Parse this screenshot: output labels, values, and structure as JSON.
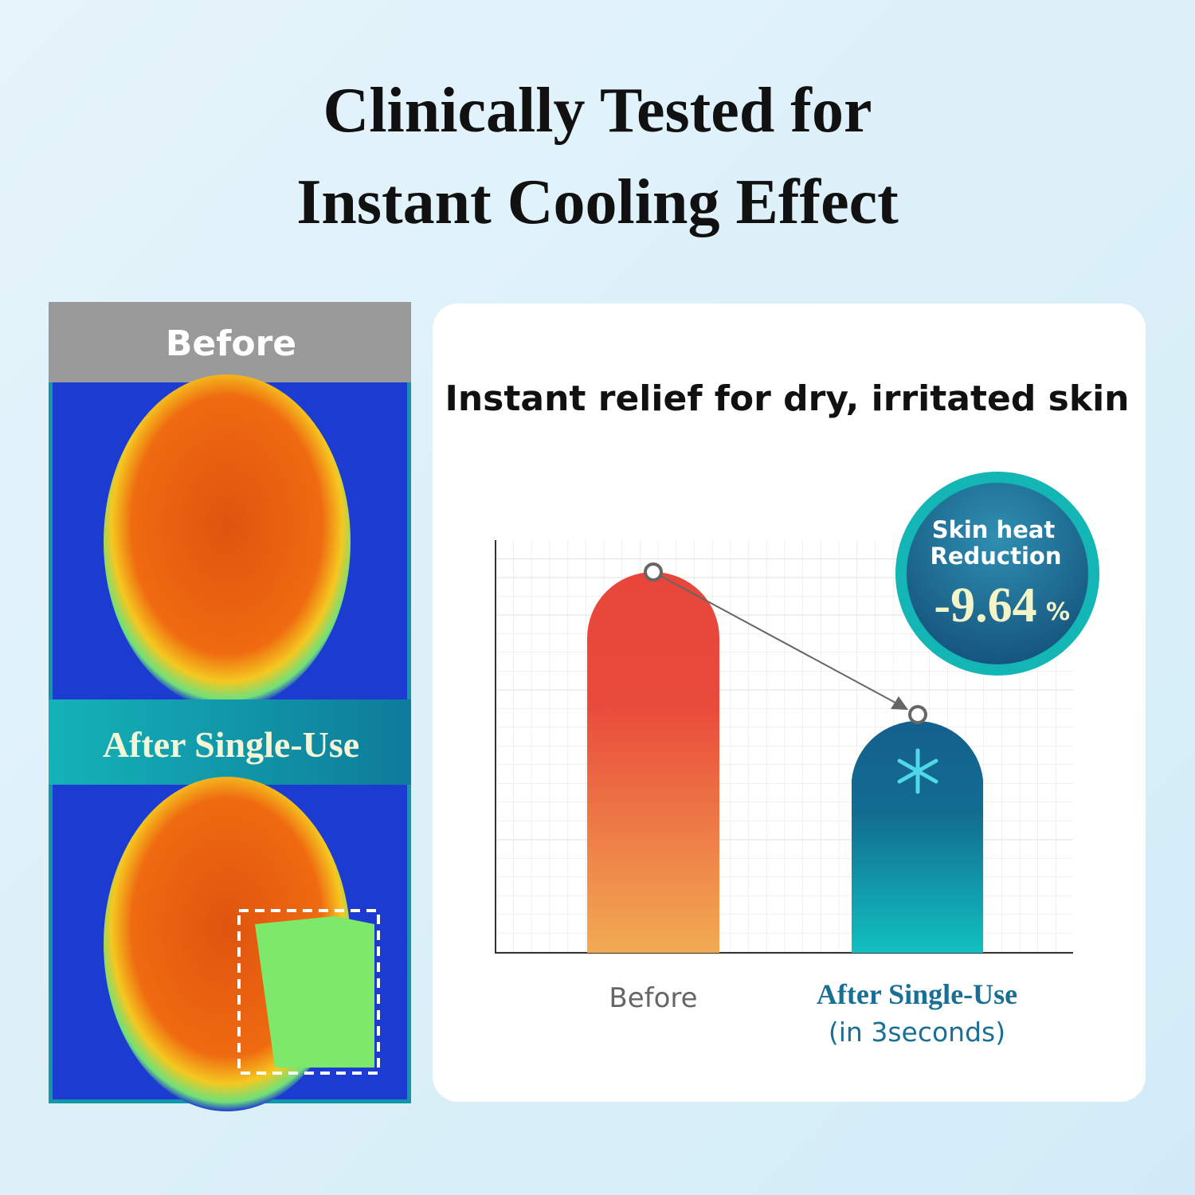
{
  "header": {
    "title_lines": [
      "Clinically Tested for",
      "Instant Cooling Effect"
    ]
  },
  "thermal_panel": {
    "before_label": "Before",
    "after_label": "After Single-Use"
  },
  "result_card": {
    "title": "Instant relief for dry, irritated skin",
    "badge": {
      "lines": [
        "Skin heat",
        "Reduction"
      ],
      "value": "-9.64",
      "unit": "%"
    },
    "bar_labels": {
      "before": "Before",
      "after": "After Single-Use",
      "after_note": "(in 3seconds)"
    }
  }
}
